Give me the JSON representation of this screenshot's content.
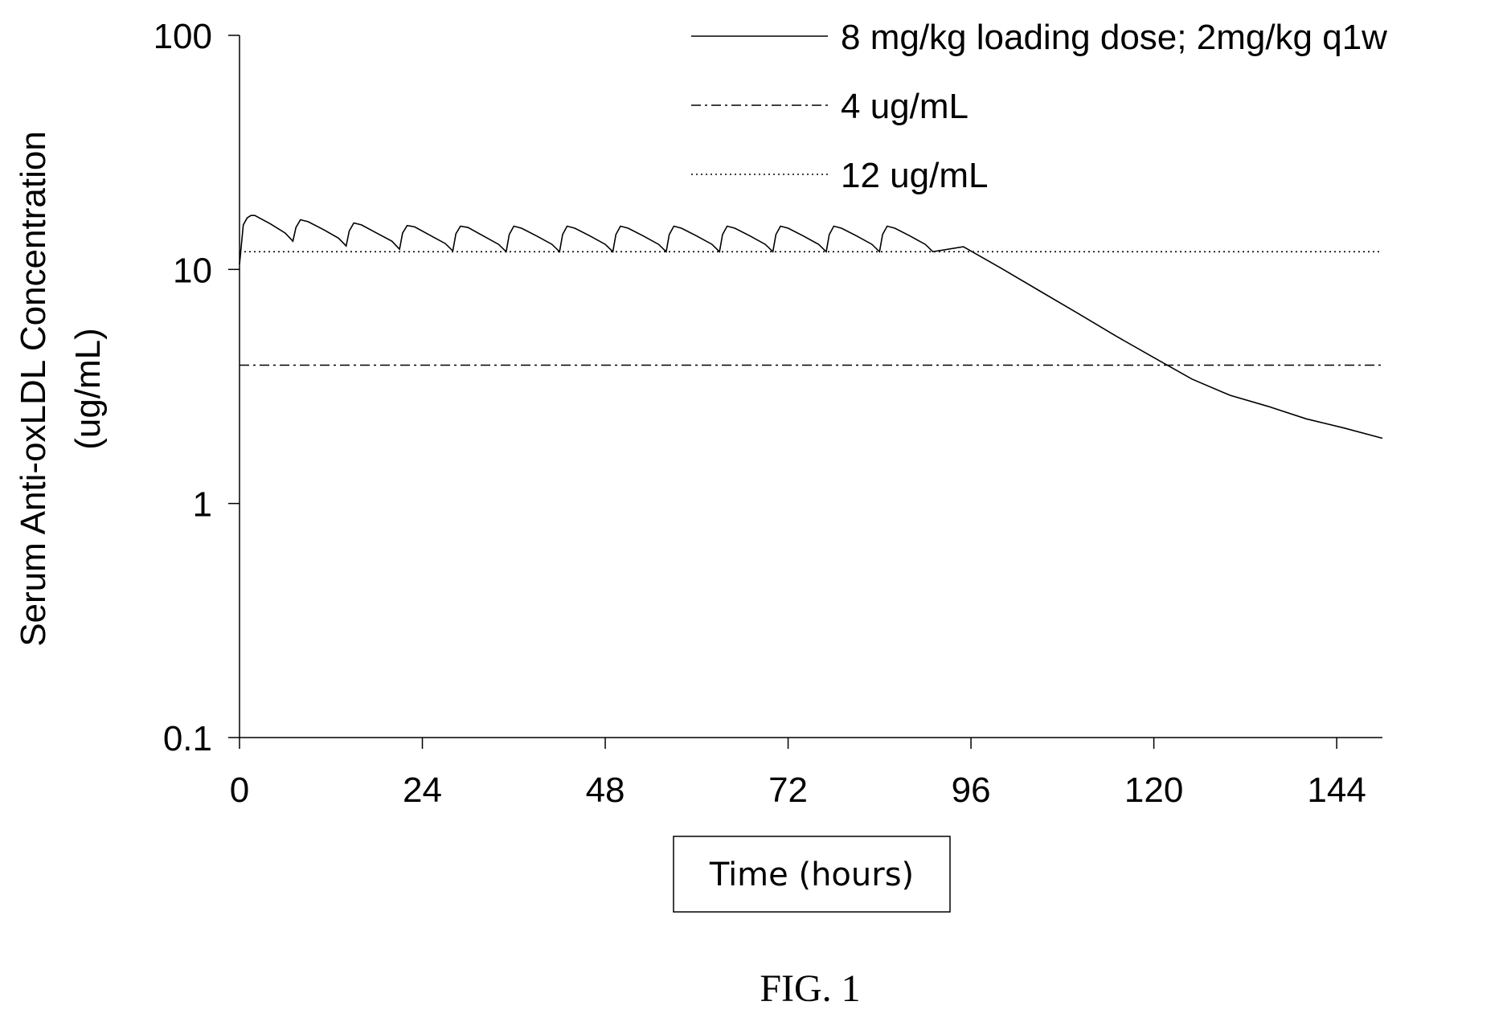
{
  "figure_caption": "FIG. 1",
  "chart_data": {
    "type": "line",
    "title": "",
    "xlabel": "Time (hours)",
    "ylabel_lines": [
      "Serum Anti-oxLDL Concentration",
      "(ug/mL)"
    ],
    "y_scale": "log",
    "xlim": [
      0,
      150
    ],
    "ylim": [
      0.1,
      100
    ],
    "x_ticks": [
      0,
      24,
      48,
      72,
      96,
      120,
      144
    ],
    "x_tick_labels": [
      "0",
      "24",
      "48",
      "72",
      "96",
      "120",
      "144"
    ],
    "y_ticks": [
      0.1,
      1,
      10,
      100
    ],
    "y_tick_labels": [
      "0.1",
      "1",
      "10",
      "100"
    ],
    "grid": false,
    "legend_position": "top-right",
    "colors": {
      "line": "#000000",
      "background": "#ffffff"
    },
    "series": [
      {
        "name": "8 mg/kg loading dose; 2mg/kg q1w",
        "style": "solid",
        "x": [
          0,
          0.5,
          1,
          1.5,
          2,
          4,
          6,
          7,
          7.4,
          8,
          9,
          11,
          13,
          14,
          14.4,
          15,
          16,
          18,
          20,
          21,
          21.4,
          22,
          23,
          25,
          27,
          28,
          28.4,
          29,
          30,
          32,
          34,
          35,
          35.4,
          36,
          37,
          39,
          41,
          42,
          42.4,
          43,
          44,
          46,
          48,
          49,
          49.4,
          50,
          51,
          53,
          55,
          56,
          56.4,
          57,
          58,
          60,
          62,
          63,
          63.4,
          64,
          65,
          67,
          69,
          70,
          70.4,
          71,
          72,
          74,
          76,
          77,
          77.4,
          78,
          79,
          81,
          83,
          84,
          84.4,
          85,
          86,
          88,
          90,
          91,
          95,
          100,
          105,
          110,
          115,
          120,
          125,
          130,
          135,
          140,
          145,
          150
        ],
        "y": [
          10.5,
          15.5,
          16.6,
          17.0,
          17.0,
          15.7,
          14.3,
          13.2,
          15.1,
          16.3,
          16.0,
          14.8,
          13.6,
          12.6,
          14.6,
          15.8,
          15.5,
          14.3,
          13.2,
          12.2,
          14.3,
          15.4,
          15.2,
          14.0,
          12.9,
          12.0,
          14.2,
          15.3,
          15.1,
          13.9,
          12.8,
          11.9,
          14.1,
          15.3,
          15.0,
          13.9,
          12.8,
          11.9,
          14.1,
          15.3,
          15.0,
          13.9,
          12.8,
          11.9,
          14.1,
          15.3,
          15.0,
          13.9,
          12.8,
          11.9,
          14.1,
          15.3,
          15.0,
          13.9,
          12.8,
          11.9,
          14.1,
          15.3,
          15.0,
          13.9,
          12.8,
          11.9,
          14.1,
          15.3,
          15.0,
          13.9,
          12.8,
          11.9,
          14.1,
          15.3,
          15.0,
          13.9,
          12.8,
          11.9,
          14.1,
          15.3,
          15.0,
          13.9,
          12.8,
          11.9,
          12.5,
          10.1,
          8.1,
          6.5,
          5.2,
          4.2,
          3.4,
          2.9,
          2.6,
          2.3,
          2.1,
          1.9
        ]
      },
      {
        "name": "4 ug/mL",
        "style": "dash-dot",
        "x": [
          0,
          150
        ],
        "y": [
          3.9,
          3.9
        ]
      },
      {
        "name": "12 ug/mL",
        "style": "dotted",
        "x": [
          0,
          150
        ],
        "y": [
          11.9,
          11.9
        ]
      }
    ]
  }
}
